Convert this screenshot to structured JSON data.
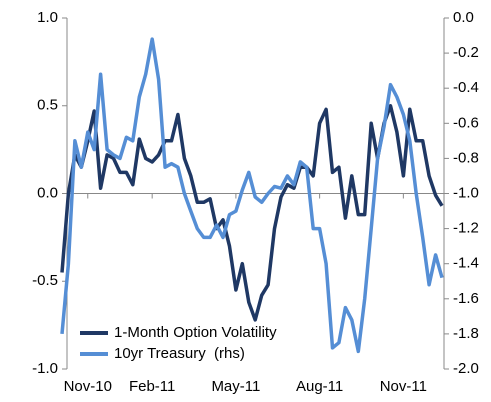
{
  "chart_data": {
    "type": "line",
    "categories": [
      null,
      null,
      null,
      null,
      "Nov-10",
      null,
      null,
      null,
      null,
      null,
      null,
      null,
      null,
      null,
      "Feb-11",
      null,
      null,
      null,
      null,
      null,
      null,
      null,
      null,
      null,
      null,
      null,
      null,
      "May-11",
      null,
      null,
      null,
      null,
      null,
      null,
      null,
      null,
      null,
      null,
      null,
      null,
      "Aug-11",
      null,
      null,
      null,
      null,
      null,
      null,
      null,
      null,
      null,
      null,
      null,
      null,
      "Nov-11",
      null,
      null,
      null,
      null,
      null,
      null
    ],
    "series": [
      {
        "name": "1-Month Option Volatility",
        "color": "#1f3864",
        "axis": "y",
        "values": [
          -0.45,
          0,
          0.22,
          0.15,
          0.3,
          0.47,
          0.03,
          0.22,
          0.2,
          0.12,
          0.12,
          0.05,
          0.31,
          0.2,
          0.18,
          0.22,
          0.3,
          0.3,
          0.45,
          0.2,
          0.1,
          -0.05,
          -0.05,
          -0.03,
          -0.2,
          -0.15,
          -0.3,
          -0.55,
          -0.4,
          -0.62,
          -0.72,
          -0.58,
          -0.52,
          -0.2,
          -0.02,
          0.05,
          0.03,
          0.15,
          0.15,
          0.1,
          0.4,
          0.48,
          0.12,
          0.15,
          -0.14,
          0.1,
          -0.12,
          -0.12,
          0.4,
          0.2,
          0.4,
          0.5,
          0.35,
          0.1,
          0.48,
          0.3,
          0.3,
          0.1,
          -0.01,
          -0.07
        ]
      },
      {
        "name": "10yr Treasury  (rhs)",
        "color": "#558ed5",
        "axis": "y2",
        "values": [
          -1.8,
          -1.4,
          -0.7,
          -0.85,
          -0.65,
          -0.75,
          -0.32,
          -0.75,
          -0.78,
          -0.8,
          -0.68,
          -0.7,
          -0.45,
          -0.32,
          -0.12,
          -0.35,
          -0.85,
          -0.83,
          -0.85,
          -1.0,
          -1.1,
          -1.2,
          -1.25,
          -1.25,
          -1.18,
          -1.25,
          -1.12,
          -1.1,
          -0.98,
          -0.88,
          -1.02,
          -1.05,
          -1.0,
          -0.96,
          -0.97,
          -0.9,
          -0.95,
          -0.82,
          -0.85,
          -1.2,
          -1.2,
          -1.4,
          -1.88,
          -1.85,
          -1.65,
          -1.72,
          -1.9,
          -1.6,
          -1.2,
          -0.8,
          -0.62,
          -0.38,
          -0.45,
          -0.55,
          -0.7,
          -1.0,
          -1.25,
          -1.52,
          -1.35,
          -1.48
        ]
      }
    ],
    "ylim": [
      -1,
      1
    ],
    "yticks": [
      {
        "value": -1,
        "label": "-1.0"
      },
      -0.5,
      {
        "value": 0,
        "label": "0.0"
      },
      0.5,
      {
        "value": 1,
        "label": "1.0"
      }
    ],
    "y2lim": [
      -2,
      0
    ],
    "y2ticks": [
      {
        "value": -2,
        "label": "-2.0"
      },
      -1.8,
      -1.6,
      -1.4,
      -1.2,
      {
        "value": -1,
        "label": "-1.0"
      },
      -0.8,
      -0.6,
      -0.4,
      -0.2,
      {
        "value": 0,
        "label": "0.0"
      }
    ],
    "legend": "lower left",
    "grid": false
  }
}
